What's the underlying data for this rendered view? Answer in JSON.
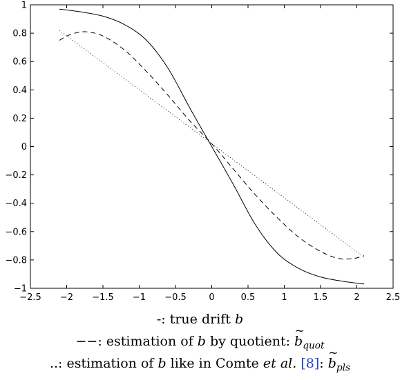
{
  "chart_data": {
    "type": "line",
    "title": "",
    "xlabel": "",
    "ylabel": "",
    "xlim": [
      -2.5,
      2.5
    ],
    "ylim": [
      -1,
      1
    ],
    "grid": false,
    "xticks": [
      -2.5,
      -2,
      -1.5,
      -1,
      -0.5,
      0,
      0.5,
      1,
      1.5,
      2,
      2.5
    ],
    "yticks": [
      -1,
      -0.8,
      -0.6,
      -0.4,
      -0.2,
      0,
      0.2,
      0.4,
      0.6,
      0.8,
      1
    ],
    "xtick_labels": [
      "−2.5",
      "−2",
      "−1.5",
      "−1",
      "−0.5",
      "0",
      "0.5",
      "1",
      "1.5",
      "2",
      "2.5"
    ],
    "ytick_labels": [
      "−1",
      "−0.8",
      "−0.6",
      "−0.4",
      "−0.2",
      "0",
      "0.2",
      "0.4",
      "0.6",
      "0.8",
      "1"
    ],
    "series": [
      {
        "style": "solid",
        "x": [
          -2.1,
          -1.8,
          -1.5,
          -1.2,
          -0.9,
          -0.6,
          -0.3,
          0,
          0.3,
          0.6,
          0.9,
          1.2,
          1.5,
          1.8,
          2.1
        ],
        "y": [
          0.97,
          0.95,
          0.92,
          0.86,
          0.75,
          0.55,
          0.27,
          0.0,
          -0.27,
          -0.55,
          -0.75,
          -0.86,
          -0.92,
          -0.95,
          -0.97
        ]
      },
      {
        "style": "dashed",
        "x": [
          -2.1,
          -1.95,
          -1.75,
          -1.5,
          -1.2,
          -0.9,
          -0.6,
          -0.3,
          0,
          0.3,
          0.6,
          0.9,
          1.2,
          1.5,
          1.75,
          1.95,
          2.1
        ],
        "y": [
          0.75,
          0.79,
          0.81,
          0.78,
          0.68,
          0.53,
          0.36,
          0.18,
          0.02,
          -0.16,
          -0.34,
          -0.5,
          -0.64,
          -0.74,
          -0.79,
          -0.79,
          -0.77
        ]
      },
      {
        "style": "dotted",
        "x": [
          -2.1,
          2.1
        ],
        "y": [
          0.82,
          -0.78
        ]
      }
    ]
  },
  "legend": {
    "solid_prefix": "-: true drift ",
    "solid_symbol": "b",
    "dashed_prefix": "−−: estimation of ",
    "dashed_symbol": "b",
    "dashed_mid": " by quotient: ",
    "dashed_est": "b",
    "dashed_sub": "quot",
    "dotted_prefix": "..: estimation of ",
    "dotted_symbol": "b",
    "dotted_mid": " like in Comte ",
    "dotted_etal": "et al.",
    "dotted_ref": "[8]",
    "dotted_colon": ": ",
    "dotted_est": "b",
    "dotted_sub": "pls"
  },
  "colors": {
    "line": "#000000",
    "reference": "#1f3fd6"
  }
}
